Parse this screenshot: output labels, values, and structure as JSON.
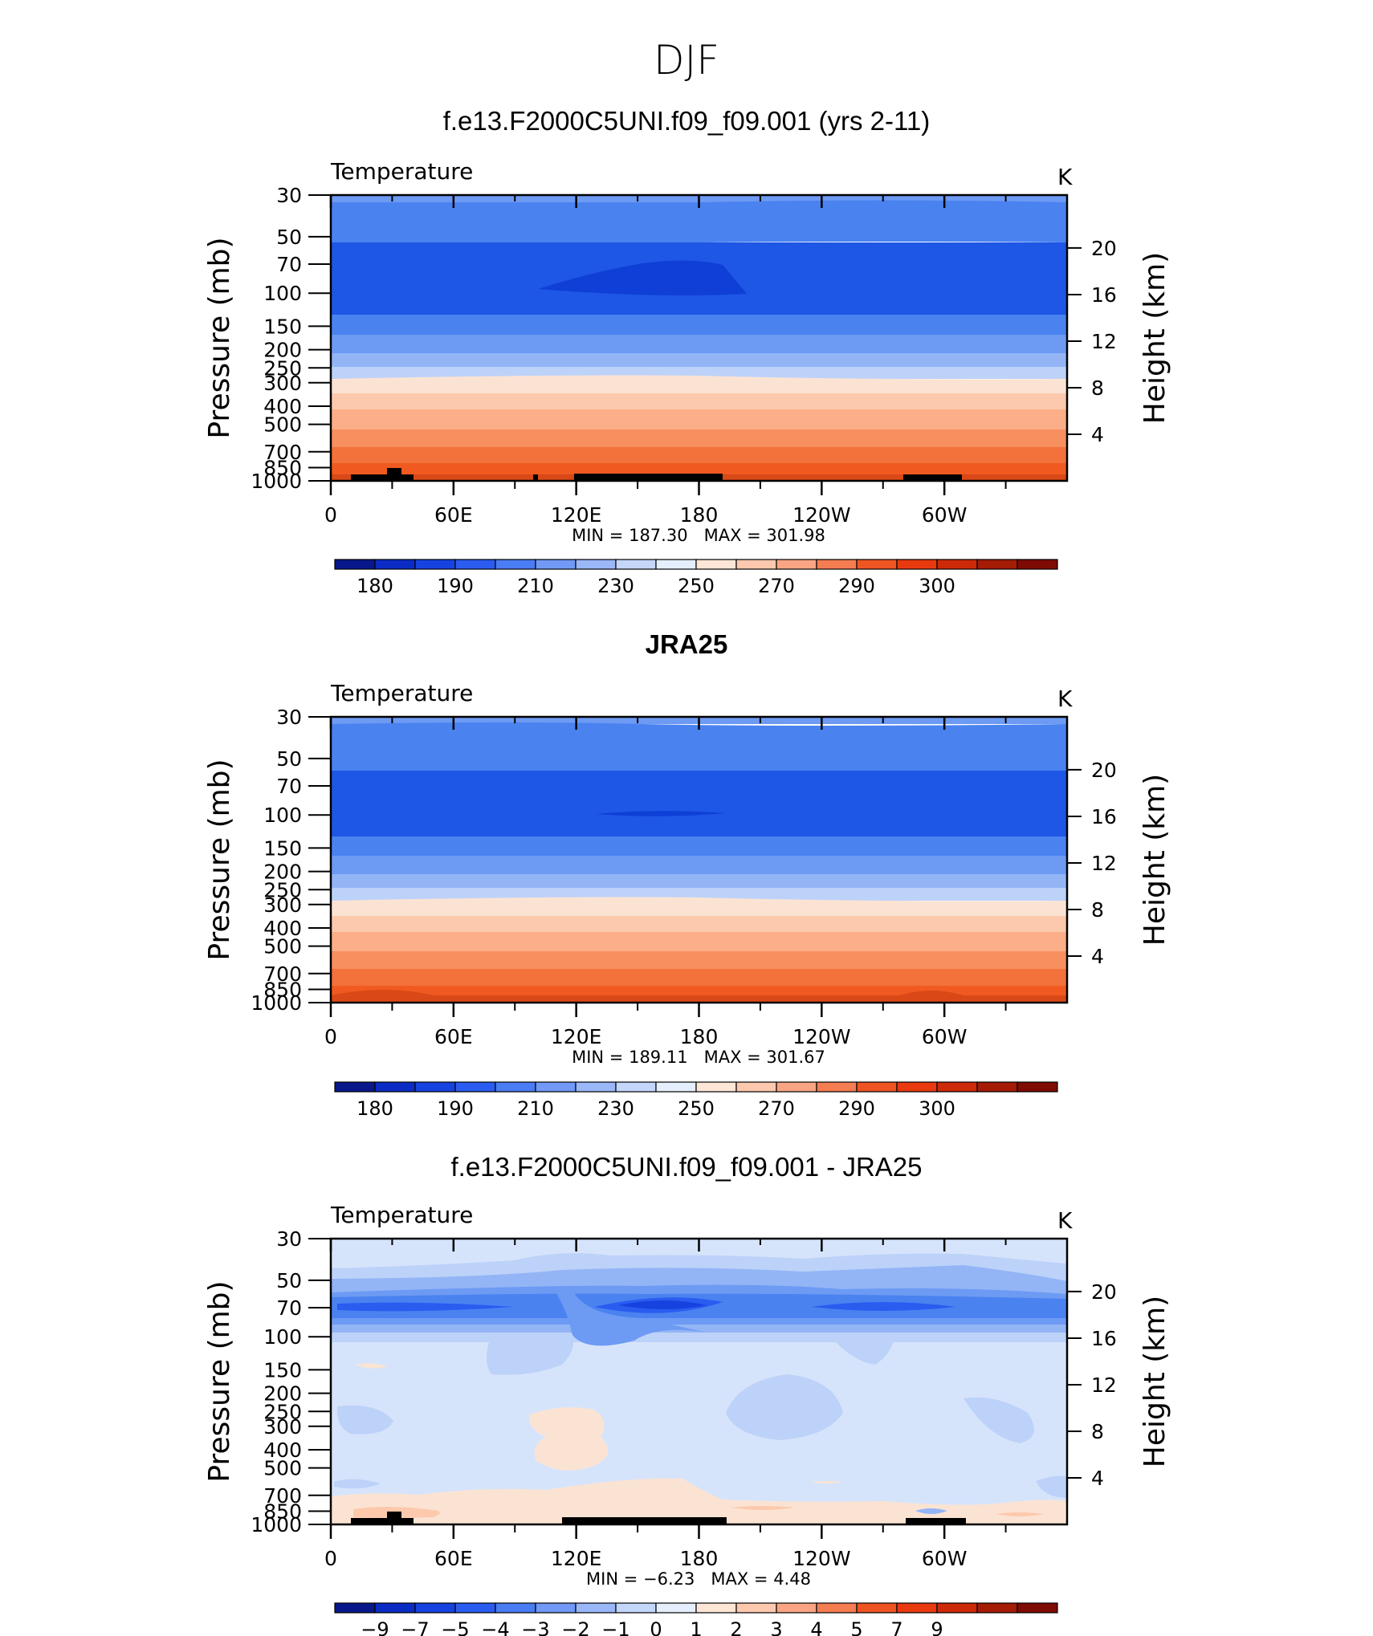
{
  "figure": {
    "title": "DJF"
  },
  "chart_data": [
    {
      "type": "heatmap",
      "panel_title": "f.e13.F2000C5UNI.f09_f09.001 (yrs 2-11)",
      "left_string": "Temperature",
      "right_string": "K",
      "ylabel": "Pressure (mb)",
      "y2label": "Height (km)",
      "yticks": [
        "30",
        "50",
        "70",
        "100",
        "150",
        "200",
        "250",
        "300",
        "400",
        "500",
        "700",
        "850",
        "1000"
      ],
      "y2ticks": [
        "20",
        "16",
        "12",
        "8",
        "4"
      ],
      "xticks": [
        "0",
        "60E",
        "120E",
        "180",
        "120W",
        "60W"
      ],
      "stats": "MIN = 187.30   MAX = 301.98",
      "colorbar_labels": [
        "180",
        "190",
        "210",
        "230",
        "250",
        "270",
        "290",
        "300"
      ],
      "colors": [
        "#2b62e9",
        "#4a82f0",
        "#1e57e6",
        "#1e57e6",
        "#4a82f0",
        "#6d9af3",
        "#93b5f6",
        "#bdd2f9",
        "#dfe9fb",
        "#fbe3d3",
        "#fcc9ad",
        "#fbae88",
        "#f78f5f",
        "#f3713a",
        "#f05a20",
        "#d94817"
      ],
      "min": 187.3,
      "max": 301.98
    },
    {
      "type": "heatmap",
      "panel_title": "JRA25",
      "left_string": "Temperature",
      "right_string": "K",
      "ylabel": "Pressure (mb)",
      "y2label": "Height (km)",
      "yticks": [
        "30",
        "50",
        "70",
        "100",
        "150",
        "200",
        "250",
        "300",
        "400",
        "500",
        "700",
        "850",
        "1000"
      ],
      "y2ticks": [
        "20",
        "16",
        "12",
        "8",
        "4"
      ],
      "xticks": [
        "0",
        "60E",
        "120E",
        "180",
        "120W",
        "60W"
      ],
      "stats": "MIN = 189.11   MAX = 301.67",
      "colorbar_labels": [
        "180",
        "190",
        "210",
        "230",
        "250",
        "270",
        "290",
        "300"
      ],
      "min": 189.11,
      "max": 301.67
    },
    {
      "type": "heatmap",
      "panel_title": "f.e13.F2000C5UNI.f09_f09.001 - JRA25",
      "left_string": "Temperature",
      "right_string": "K",
      "ylabel": "Pressure (mb)",
      "y2label": "Height (km)",
      "yticks": [
        "30",
        "50",
        "70",
        "100",
        "150",
        "200",
        "250",
        "300",
        "400",
        "500",
        "700",
        "850",
        "1000"
      ],
      "y2ticks": [
        "20",
        "16",
        "12",
        "8",
        "4"
      ],
      "xticks": [
        "0",
        "60E",
        "120E",
        "180",
        "120W",
        "60W"
      ],
      "stats": "MIN = −6.23   MAX = 4.48",
      "colorbar_labels": [
        "−9",
        "−7",
        "−5",
        "−4",
        "−3",
        "−2",
        "−1",
        "0",
        "1",
        "2",
        "3",
        "4",
        "5",
        "7",
        "9"
      ],
      "min": -6.23,
      "max": 4.48
    }
  ],
  "colorbar_colors": [
    "#08188a",
    "#0b2cc4",
    "#1643e0",
    "#2a5cf0",
    "#4a7cf3",
    "#7199f5",
    "#9ab7f8",
    "#c4d6fa",
    "#e4eefc",
    "#fde6d6",
    "#fcc9ae",
    "#f9a584",
    "#f57d52",
    "#ee5523",
    "#e83a0e",
    "#cc2a08",
    "#a41b06",
    "#7e0b04"
  ]
}
